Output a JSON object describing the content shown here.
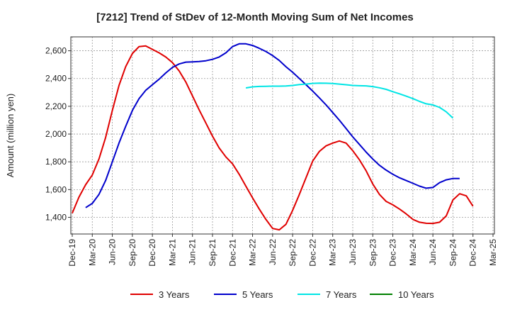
{
  "chart_data": {
    "type": "line",
    "title": "[7212]  Trend of StDev of 12-Month Moving Sum of Net Incomes",
    "ylabel": "Amount (million yen)",
    "xlabel": "",
    "ylim": [
      1280,
      2700
    ],
    "yticks": [
      1400,
      1600,
      1800,
      2000,
      2200,
      2400,
      2600
    ],
    "ytick_labels": [
      "1,400",
      "1,600",
      "1,800",
      "2,000",
      "2,200",
      "2,400",
      "2,600"
    ],
    "xticks": [
      "Dec-19",
      "Mar-20",
      "Jun-20",
      "Sep-20",
      "Dec-20",
      "Mar-21",
      "Jun-21",
      "Sep-21",
      "Dec-21",
      "Mar-22",
      "Jun-22",
      "Sep-22",
      "Dec-22",
      "Mar-23",
      "Jun-23",
      "Sep-23",
      "Dec-23",
      "Mar-24",
      "Jun-24",
      "Sep-24",
      "Dec-24",
      "Mar-25"
    ],
    "grid": true,
    "legend_position": "bottom",
    "series": [
      {
        "name": "3 Years",
        "color": "#e00000",
        "start_month": 0,
        "values": [
          1430,
          1545,
          1635,
          1705,
          1820,
          1975,
          2170,
          2350,
          2485,
          2580,
          2630,
          2635,
          2610,
          2585,
          2555,
          2515,
          2455,
          2375,
          2275,
          2175,
          2080,
          1985,
          1900,
          1835,
          1785,
          1710,
          1625,
          1540,
          1460,
          1385,
          1320,
          1310,
          1350,
          1450,
          1565,
          1685,
          1805,
          1875,
          1915,
          1935,
          1950,
          1935,
          1880,
          1815,
          1735,
          1640,
          1565,
          1515,
          1490,
          1460,
          1425,
          1385,
          1365,
          1357,
          1356,
          1365,
          1410,
          1525,
          1570,
          1555,
          1480
        ]
      },
      {
        "name": "5 Years",
        "color": "#0000cc",
        "start_month": 2,
        "values": [
          1470,
          1500,
          1565,
          1665,
          1800,
          1935,
          2055,
          2170,
          2255,
          2315,
          2355,
          2395,
          2440,
          2480,
          2505,
          2518,
          2520,
          2522,
          2528,
          2538,
          2555,
          2585,
          2630,
          2650,
          2650,
          2638,
          2618,
          2595,
          2565,
          2530,
          2485,
          2445,
          2400,
          2355,
          2310,
          2260,
          2210,
          2155,
          2100,
          2040,
          1980,
          1925,
          1870,
          1820,
          1775,
          1740,
          1710,
          1685,
          1665,
          1645,
          1625,
          1610,
          1615,
          1650,
          1670,
          1680,
          1680
        ]
      },
      {
        "name": "7 Years",
        "color": "#00e5e5",
        "start_month": 26,
        "values": [
          2332,
          2340,
          2343,
          2344,
          2345,
          2345,
          2346,
          2350,
          2356,
          2360,
          2365,
          2367,
          2366,
          2364,
          2360,
          2355,
          2350,
          2348,
          2347,
          2342,
          2333,
          2322,
          2305,
          2290,
          2273,
          2255,
          2235,
          2218,
          2210,
          2192,
          2160,
          2115
        ]
      },
      {
        "name": "10 Years",
        "color": "#008000",
        "start_month": 0,
        "values": []
      }
    ]
  }
}
